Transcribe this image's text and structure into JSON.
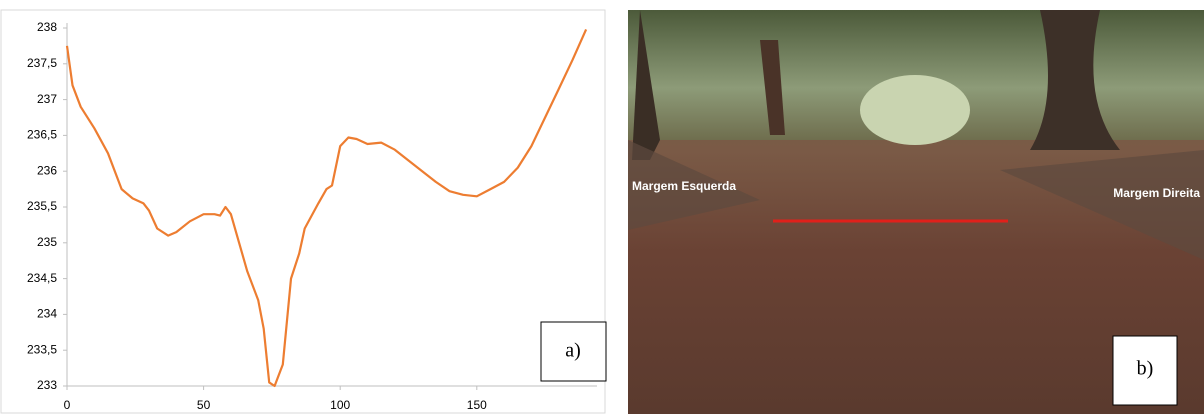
{
  "chart_data": {
    "type": "line",
    "annotation": "a)",
    "x": [
      0,
      2,
      5,
      10,
      15,
      20,
      24,
      28,
      30,
      33,
      37,
      40,
      45,
      50,
      54,
      56,
      58,
      60,
      63,
      66,
      70,
      72,
      74,
      76,
      79,
      82,
      85,
      87,
      92,
      95,
      97,
      100,
      103,
      106,
      110,
      115,
      120,
      125,
      130,
      135,
      140,
      145,
      150,
      155,
      160,
      165,
      170,
      175,
      180,
      185,
      190
    ],
    "series": [
      {
        "color": "#ED7D31",
        "values": [
          237.75,
          237.2,
          236.9,
          236.6,
          236.25,
          235.75,
          235.62,
          235.55,
          235.45,
          235.2,
          235.1,
          235.15,
          235.3,
          235.4,
          235.4,
          235.38,
          235.5,
          235.4,
          235.0,
          234.6,
          234.2,
          233.8,
          233.05,
          233.0,
          233.3,
          234.5,
          234.85,
          235.2,
          235.55,
          235.75,
          235.8,
          236.35,
          236.47,
          236.45,
          236.38,
          236.4,
          236.3,
          236.15,
          236.0,
          235.85,
          235.72,
          235.67,
          235.65,
          235.75,
          235.85,
          236.05,
          236.35,
          236.75,
          237.15,
          237.55,
          237.98
        ]
      }
    ],
    "xlim": [
      0,
      194
    ],
    "xticks": [
      0,
      50,
      100,
      150
    ],
    "ylim": [
      233,
      238
    ],
    "yticks": [
      233,
      {
        "value": 233.5,
        "label": "233,5"
      },
      234,
      {
        "value": 234.5,
        "label": "234,5"
      },
      235,
      {
        "value": 235.5,
        "label": "235,5"
      },
      236,
      {
        "value": 236.5,
        "label": "236,5"
      },
      237,
      {
        "value": 237.5,
        "label": "237,5"
      },
      238
    ]
  },
  "photo": {
    "label": "b)",
    "left_bank": "Margem Esquerda",
    "right_bank": "Margem Direita"
  }
}
